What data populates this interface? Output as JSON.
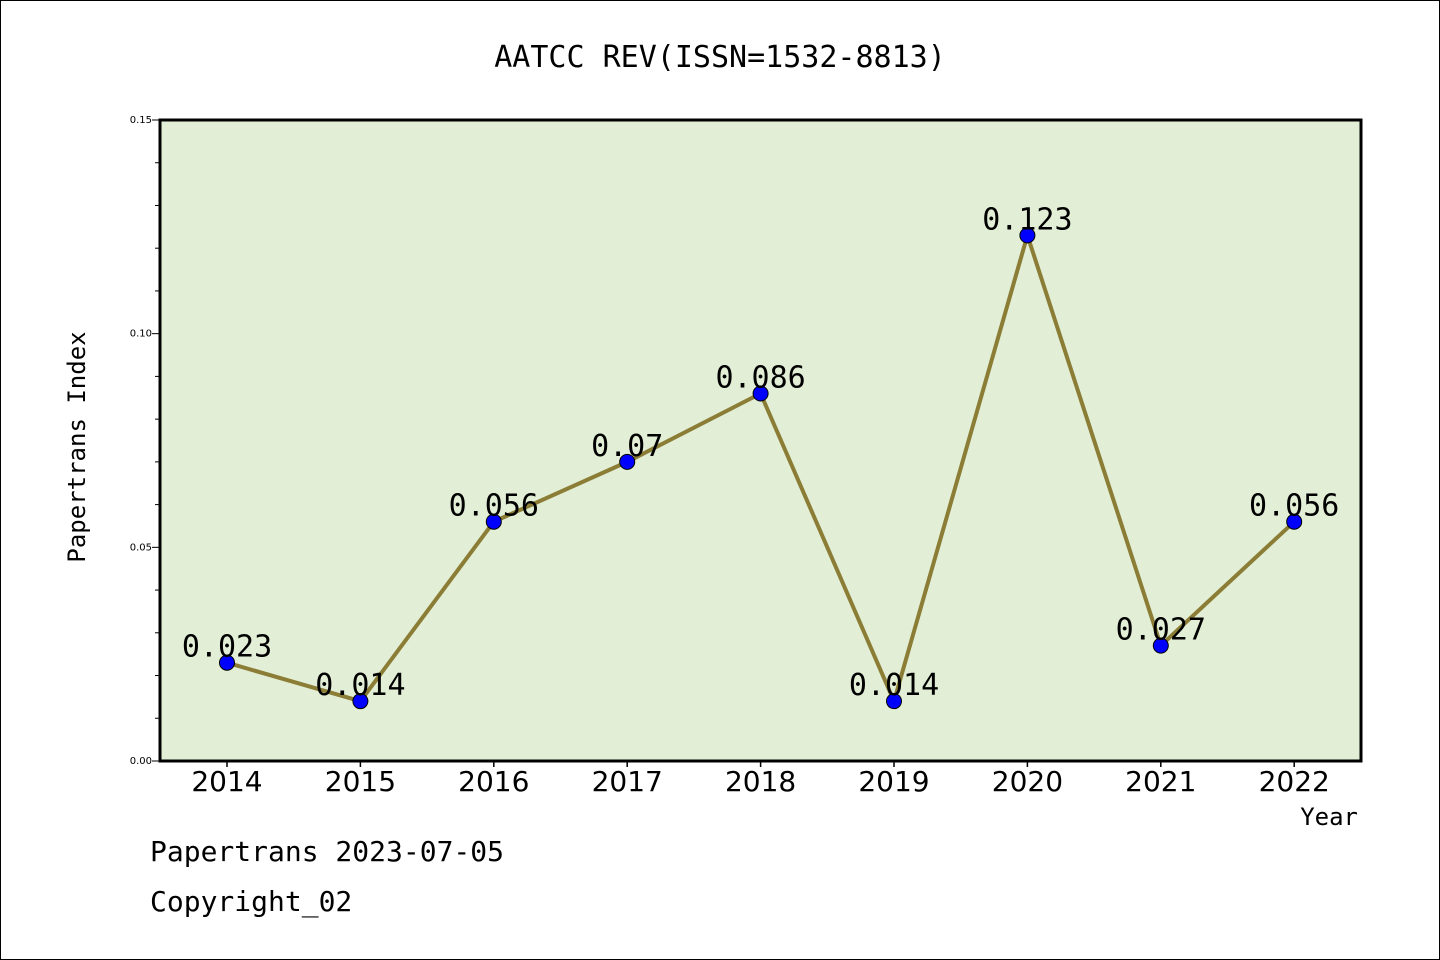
{
  "chart_data": {
    "type": "line",
    "title": "AATCC REV(ISSN=1532-8813)",
    "xlabel": "Year",
    "ylabel": "Papertrans Index",
    "categories": [
      "2014",
      "2015",
      "2016",
      "2017",
      "2018",
      "2019",
      "2020",
      "2021",
      "2022"
    ],
    "series": [
      {
        "values": [
          0.023,
          0.014,
          0.056,
          0.07,
          0.086,
          0.014,
          0.123,
          0.027,
          0.056
        ],
        "labels": [
          "0.023",
          "0.014",
          "0.056",
          "0.07",
          "0.086",
          "0.014",
          "0.123",
          "0.027",
          "0.056"
        ]
      }
    ],
    "ylim": [
      0,
      0.15
    ],
    "yticks": [
      "0.00",
      "0.05",
      "0.10",
      "0.15"
    ],
    "grid": false,
    "colors": {
      "plot_background": "#e2efd6",
      "line": "#8b7d35",
      "marker": "#0000ff"
    }
  },
  "footer": {
    "date_line": "Papertrans 2023-07-05",
    "copyright_line": "Copyright_02"
  }
}
